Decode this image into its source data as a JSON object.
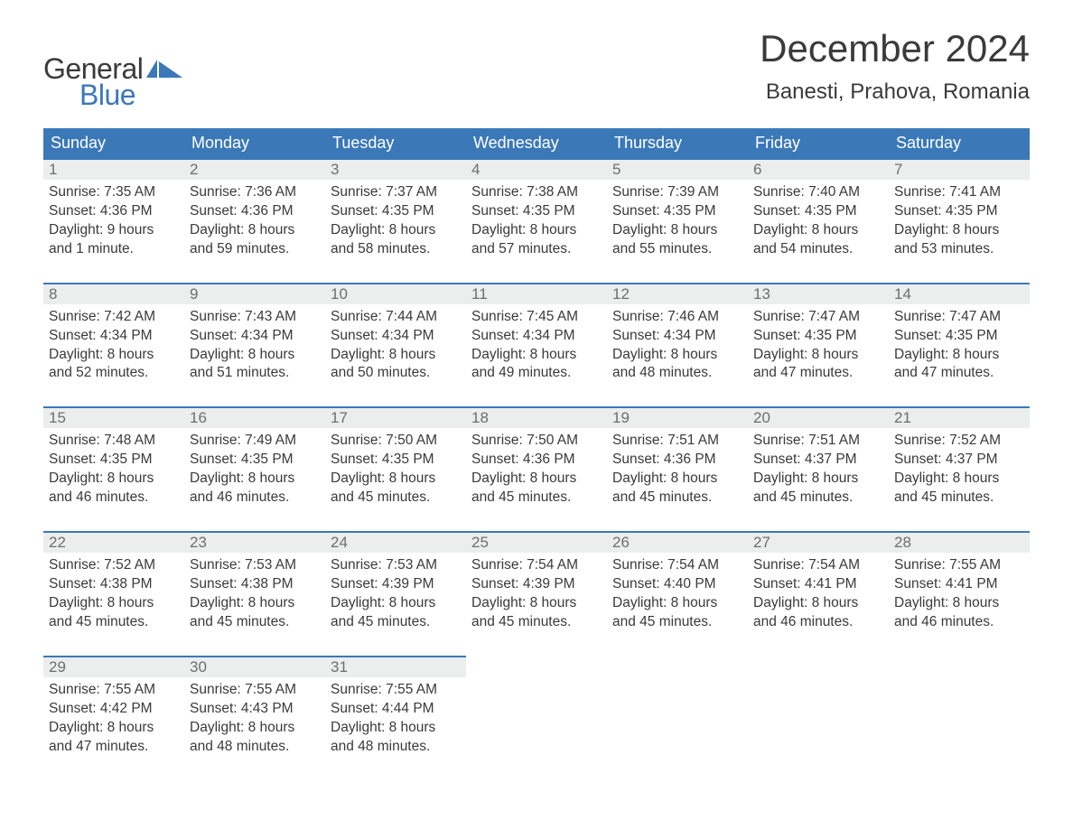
{
  "brand": {
    "part1": "General",
    "part2": "Blue",
    "logo_color": "#3b78b8",
    "text_color": "#3a3a3a"
  },
  "title": "December 2024",
  "location": "Banesti, Prahova, Romania",
  "colors": {
    "header_bg": "#3b78b8",
    "header_text": "#ffffff",
    "daynum_bg": "#eceded",
    "daynum_border": "#3b78b8",
    "body_text": "#3a3a3a",
    "daynum_text": "#6e6e6e",
    "page_bg": "#ffffff"
  },
  "day_names": [
    "Sunday",
    "Monday",
    "Tuesday",
    "Wednesday",
    "Thursday",
    "Friday",
    "Saturday"
  ],
  "weeks": [
    [
      {
        "n": "1",
        "sr": "7:35 AM",
        "ss": "4:36 PM",
        "dl": "9 hours and 1 minute."
      },
      {
        "n": "2",
        "sr": "7:36 AM",
        "ss": "4:36 PM",
        "dl": "8 hours and 59 minutes."
      },
      {
        "n": "3",
        "sr": "7:37 AM",
        "ss": "4:35 PM",
        "dl": "8 hours and 58 minutes."
      },
      {
        "n": "4",
        "sr": "7:38 AM",
        "ss": "4:35 PM",
        "dl": "8 hours and 57 minutes."
      },
      {
        "n": "5",
        "sr": "7:39 AM",
        "ss": "4:35 PM",
        "dl": "8 hours and 55 minutes."
      },
      {
        "n": "6",
        "sr": "7:40 AM",
        "ss": "4:35 PM",
        "dl": "8 hours and 54 minutes."
      },
      {
        "n": "7",
        "sr": "7:41 AM",
        "ss": "4:35 PM",
        "dl": "8 hours and 53 minutes."
      }
    ],
    [
      {
        "n": "8",
        "sr": "7:42 AM",
        "ss": "4:34 PM",
        "dl": "8 hours and 52 minutes."
      },
      {
        "n": "9",
        "sr": "7:43 AM",
        "ss": "4:34 PM",
        "dl": "8 hours and 51 minutes."
      },
      {
        "n": "10",
        "sr": "7:44 AM",
        "ss": "4:34 PM",
        "dl": "8 hours and 50 minutes."
      },
      {
        "n": "11",
        "sr": "7:45 AM",
        "ss": "4:34 PM",
        "dl": "8 hours and 49 minutes."
      },
      {
        "n": "12",
        "sr": "7:46 AM",
        "ss": "4:34 PM",
        "dl": "8 hours and 48 minutes."
      },
      {
        "n": "13",
        "sr": "7:47 AM",
        "ss": "4:35 PM",
        "dl": "8 hours and 47 minutes."
      },
      {
        "n": "14",
        "sr": "7:47 AM",
        "ss": "4:35 PM",
        "dl": "8 hours and 47 minutes."
      }
    ],
    [
      {
        "n": "15",
        "sr": "7:48 AM",
        "ss": "4:35 PM",
        "dl": "8 hours and 46 minutes."
      },
      {
        "n": "16",
        "sr": "7:49 AM",
        "ss": "4:35 PM",
        "dl": "8 hours and 46 minutes."
      },
      {
        "n": "17",
        "sr": "7:50 AM",
        "ss": "4:35 PM",
        "dl": "8 hours and 45 minutes."
      },
      {
        "n": "18",
        "sr": "7:50 AM",
        "ss": "4:36 PM",
        "dl": "8 hours and 45 minutes."
      },
      {
        "n": "19",
        "sr": "7:51 AM",
        "ss": "4:36 PM",
        "dl": "8 hours and 45 minutes."
      },
      {
        "n": "20",
        "sr": "7:51 AM",
        "ss": "4:37 PM",
        "dl": "8 hours and 45 minutes."
      },
      {
        "n": "21",
        "sr": "7:52 AM",
        "ss": "4:37 PM",
        "dl": "8 hours and 45 minutes."
      }
    ],
    [
      {
        "n": "22",
        "sr": "7:52 AM",
        "ss": "4:38 PM",
        "dl": "8 hours and 45 minutes."
      },
      {
        "n": "23",
        "sr": "7:53 AM",
        "ss": "4:38 PM",
        "dl": "8 hours and 45 minutes."
      },
      {
        "n": "24",
        "sr": "7:53 AM",
        "ss": "4:39 PM",
        "dl": "8 hours and 45 minutes."
      },
      {
        "n": "25",
        "sr": "7:54 AM",
        "ss": "4:39 PM",
        "dl": "8 hours and 45 minutes."
      },
      {
        "n": "26",
        "sr": "7:54 AM",
        "ss": "4:40 PM",
        "dl": "8 hours and 45 minutes."
      },
      {
        "n": "27",
        "sr": "7:54 AM",
        "ss": "4:41 PM",
        "dl": "8 hours and 46 minutes."
      },
      {
        "n": "28",
        "sr": "7:55 AM",
        "ss": "4:41 PM",
        "dl": "8 hours and 46 minutes."
      }
    ],
    [
      {
        "n": "29",
        "sr": "7:55 AM",
        "ss": "4:42 PM",
        "dl": "8 hours and 47 minutes."
      },
      {
        "n": "30",
        "sr": "7:55 AM",
        "ss": "4:43 PM",
        "dl": "8 hours and 48 minutes."
      },
      {
        "n": "31",
        "sr": "7:55 AM",
        "ss": "4:44 PM",
        "dl": "8 hours and 48 minutes."
      },
      null,
      null,
      null,
      null
    ]
  ],
  "labels": {
    "sunrise": "Sunrise:",
    "sunset": "Sunset:",
    "daylight": "Daylight:"
  }
}
